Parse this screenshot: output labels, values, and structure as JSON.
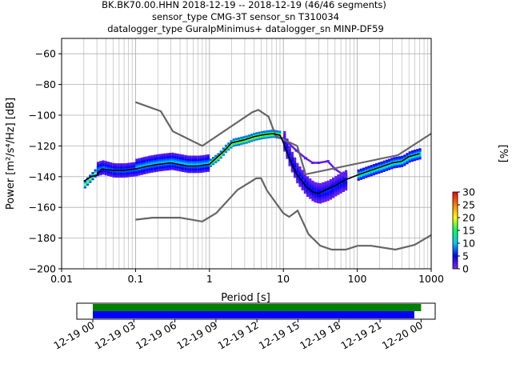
{
  "title_lines": [
    "BK.BK70.00.HHN   2018-12-19 -- 2018-12-19  (46/46 segments)",
    "sensor_type CMG-3T sensor_sn T310034",
    "datalogger_type GuralpMinimus+ datalogger_sn MINP-DF59"
  ],
  "chart_data": [
    {
      "type": "heatmap",
      "subtype": "probabilistic-power-spectral-density",
      "xlabel": "Period [s]",
      "ylabel": "Power [m²/s⁴/Hz] [dB]",
      "xscale": "log",
      "xlim": [
        0.01,
        1000
      ],
      "ylim": [
        -200,
        -50
      ],
      "x_ticks": [
        0.01,
        0.1,
        1,
        10,
        100,
        1000
      ],
      "x_tick_labels": [
        "0.01",
        "0.1",
        "1",
        "10",
        "100",
        "1000"
      ],
      "y_ticks": [
        -200,
        -180,
        -160,
        -140,
        -120,
        -100,
        -80,
        -60
      ],
      "y_tick_labels": [
        "−200",
        "−180",
        "−160",
        "−140",
        "−120",
        "−100",
        "−80",
        "−60"
      ],
      "grid": true,
      "colorbar": {
        "label": "[%]",
        "range": [
          0,
          30
        ],
        "ticks": [
          0,
          5,
          10,
          15,
          20,
          25,
          30
        ],
        "colors": [
          "#ffffff",
          "#8a2be2",
          "#0000ff",
          "#00c8ff",
          "#00ff64",
          "#ffff00",
          "#ff8000",
          "#ff0000"
        ]
      },
      "noise_models": {
        "NHNM": {
          "x": [
            0.1,
            0.22,
            0.32,
            0.8,
            3.8,
            4.6,
            6.3,
            7.9,
            15.4,
            20,
            354.8,
            1000
          ],
          "y": [
            -91.5,
            -97.4,
            -110.5,
            -120,
            -98,
            -96.5,
            -101,
            -113.5,
            -120,
            -138.5,
            -126,
            -112
          ]
        },
        "NLNM": {
          "x": [
            0.1,
            0.17,
            0.4,
            0.8,
            1.24,
            2.4,
            4.3,
            5.0,
            6.0,
            10.0,
            12.0,
            15.6,
            21.9,
            31.6,
            45,
            70,
            101,
            154,
            328,
            600,
            1000
          ],
          "y": [
            -168,
            -166.7,
            -166.7,
            -169.2,
            -163.7,
            -148.6,
            -141.1,
            -141.1,
            -149,
            -163.8,
            -166.2,
            -162.1,
            -177.5,
            -185,
            -187.5,
            -187.5,
            -185,
            -185,
            -187.5,
            -184.4,
            -178
          ]
        }
      },
      "mean_curve": {
        "x": [
          0.02,
          0.025,
          0.03,
          0.035,
          0.05,
          0.07,
          0.1,
          0.15,
          0.2,
          0.3,
          0.5,
          0.7,
          1,
          1.3,
          1.6,
          2,
          3,
          4,
          5,
          7,
          9,
          10,
          12,
          15,
          20,
          25,
          30,
          40,
          50,
          70,
          100,
          150,
          200,
          300,
          400,
          500,
          700
        ],
        "y": [
          -143,
          -140,
          -139,
          -135,
          -136,
          -136,
          -135,
          -133,
          -132,
          -131,
          -133,
          -133,
          -132,
          -127,
          -123,
          -118,
          -116,
          -114,
          -113,
          -112,
          -113,
          -118,
          -128,
          -138,
          -146,
          -150,
          -151,
          -148,
          -146,
          -142,
          -139,
          -136,
          -134,
          -131,
          -130,
          -127,
          -125
        ]
      },
      "density": [
        {
          "x": [
            0.02,
            0.025,
            0.03
          ],
          "y": [
            -145,
            -140,
            -136
          ],
          "spread": 2,
          "level": 18
        },
        {
          "x": [
            0.03,
            0.035,
            0.05,
            0.07,
            0.1
          ],
          "y": [
            -135,
            -134,
            -136,
            -136,
            -135
          ],
          "spread": 4,
          "level": 8
        },
        {
          "x": [
            0.1,
            0.15,
            0.2,
            0.3,
            0.5,
            0.7,
            1
          ],
          "y": [
            -134,
            -132,
            -131,
            -130,
            -132,
            -132,
            -131
          ],
          "spread": 5,
          "level": 10
        },
        {
          "x": [
            1,
            1.3,
            1.6,
            2,
            3,
            4,
            5,
            7,
            9
          ],
          "y": [
            -131,
            -127,
            -122,
            -118,
            -116,
            -114,
            -113,
            -112,
            -113
          ],
          "spread": 2,
          "level": 22
        },
        {
          "x": [
            10,
            12,
            15,
            20,
            25,
            30,
            40,
            50,
            70
          ],
          "y": [
            -117,
            -128,
            -138,
            -146,
            -150,
            -151,
            -149,
            -146,
            -142
          ],
          "spread": 6,
          "level": 6
        },
        {
          "x": [
            100,
            150,
            200,
            300,
            400,
            500,
            700
          ],
          "y": [
            -139,
            -136,
            -134,
            -131,
            -130,
            -127,
            -125
          ],
          "spread": 3,
          "level": 14
        }
      ],
      "outlier_traces": [
        {
          "x": [
            10,
            15,
            20,
            25,
            30,
            40,
            50,
            70
          ],
          "y": [
            -115,
            -123,
            -128,
            -131,
            -131,
            -130,
            -135,
            -140
          ]
        }
      ]
    },
    {
      "type": "timeline",
      "description_free": true,
      "xlim": [
        "2018-12-19 00:00",
        "2018-12-20 02:00"
      ],
      "tick_labels": [
        "12-19 00",
        "12-19 03",
        "12-19 06",
        "12-19 09",
        "12-19 12",
        "12-19 15",
        "12-19 18",
        "12-19 21",
        "12-20 00"
      ],
      "tick_hours": [
        0,
        3,
        6,
        9,
        12,
        15,
        18,
        21,
        24
      ],
      "bars": [
        {
          "color": "#008000",
          "start_hour": 0,
          "end_hour": 24
        },
        {
          "color": "#0000ff",
          "start_hour": 0,
          "end_hour": 23.5
        }
      ]
    }
  ]
}
